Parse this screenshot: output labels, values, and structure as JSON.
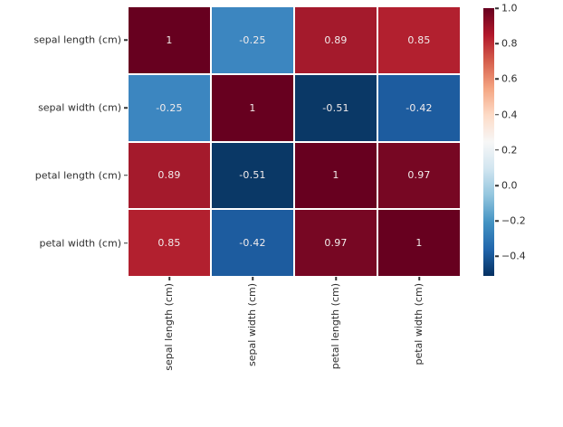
{
  "chart_data": {
    "type": "heatmap",
    "title": "",
    "x_tick_labels": [
      "sepal length (cm)",
      "sepal width (cm)",
      "petal length (cm)",
      "petal width (cm)"
    ],
    "y_tick_labels": [
      "sepal length (cm)",
      "sepal width (cm)",
      "petal length (cm)",
      "petal width (cm)"
    ],
    "matrix": [
      [
        1,
        -0.25,
        0.89,
        0.85
      ],
      [
        -0.25,
        1,
        -0.51,
        -0.42
      ],
      [
        0.89,
        -0.51,
        1,
        0.97
      ],
      [
        0.85,
        -0.42,
        0.97,
        1
      ]
    ],
    "cell_labels": [
      [
        "1",
        "-0.25",
        "0.89",
        "0.85"
      ],
      [
        "-0.25",
        "1",
        "-0.51",
        "-0.42"
      ],
      [
        "0.89",
        "-0.51",
        "1",
        "0.97"
      ],
      [
        "0.85",
        "-0.42",
        "0.97",
        "1"
      ]
    ],
    "cell_colors": [
      [
        "#67001f",
        "#3c86c0",
        "#a41a2c",
        "#b2202f"
      ],
      [
        "#3c86c0",
        "#67001f",
        "#0a3866",
        "#1d5c9f"
      ],
      [
        "#a41a2c",
        "#0a3866",
        "#67001f",
        "#770723"
      ],
      [
        "#b2202f",
        "#1d5c9f",
        "#770723",
        "#67001f"
      ]
    ],
    "colormap": "RdBu_r",
    "vmin": -0.51,
    "vmax": 1.0,
    "grid": "white cell separators",
    "legend_position": "colorbar-right",
    "colorbar": {
      "tick_labels": [
        "1.0",
        "0.8",
        "0.6",
        "0.4",
        "0.2",
        "0.0",
        "−0.2",
        "−0.4"
      ],
      "tick_values": [
        1.0,
        0.8,
        0.6,
        0.4,
        0.2,
        0.0,
        -0.2,
        -0.4
      ],
      "gradient_stops": [
        {
          "pos": 0,
          "color": "#67001f"
        },
        {
          "pos": 10,
          "color": "#b2182b"
        },
        {
          "pos": 20,
          "color": "#d6604d"
        },
        {
          "pos": 30,
          "color": "#f4a582"
        },
        {
          "pos": 40,
          "color": "#fddbc7"
        },
        {
          "pos": 50,
          "color": "#f7f7f7"
        },
        {
          "pos": 60,
          "color": "#d1e5f0"
        },
        {
          "pos": 70,
          "color": "#92c5de"
        },
        {
          "pos": 80,
          "color": "#4393c3"
        },
        {
          "pos": 90,
          "color": "#2166ac"
        },
        {
          "pos": 100,
          "color": "#053061"
        }
      ]
    }
  },
  "colors": {
    "background": "#ffffff",
    "axis_text": "#2e2e2e",
    "cell_text": "#f2ecec",
    "tick_mark": "#333333",
    "cell_gap": "#ffffff"
  }
}
